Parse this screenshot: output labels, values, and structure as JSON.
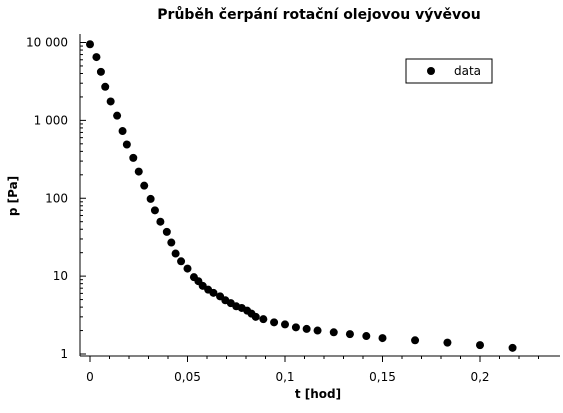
{
  "chart_data": {
    "type": "scatter",
    "title": "Průběh čerpání rotační olejovou vývěvou",
    "xlabel": "t [hod]",
    "ylabel": "p [Pa]",
    "xlim": [
      -0.005,
      0.24
    ],
    "ylim": [
      1,
      15000
    ],
    "y_scale": "log",
    "x_ticks": [
      {
        "value": 0,
        "label": "0"
      },
      {
        "value": 0.05,
        "label": "0,05"
      },
      {
        "value": 0.1,
        "label": "0,1"
      },
      {
        "value": 0.15,
        "label": "0,15"
      },
      {
        "value": 0.2,
        "label": "0,2"
      }
    ],
    "y_ticks": [
      {
        "value": 1,
        "label": "1"
      },
      {
        "value": 10,
        "label": "10"
      },
      {
        "value": 100,
        "label": "100"
      },
      {
        "value": 1000,
        "label": "1 000"
      },
      {
        "value": 10000,
        "label": "10 000"
      }
    ],
    "grid": false,
    "legend": {
      "position": "top-right",
      "entries": [
        "data"
      ]
    },
    "series": [
      {
        "name": "data",
        "color": "#000000",
        "marker": "circle",
        "points": [
          [
            0.0,
            9500
          ],
          [
            0.0033,
            6500
          ],
          [
            0.0056,
            4200
          ],
          [
            0.0078,
            2700
          ],
          [
            0.0106,
            1750
          ],
          [
            0.0139,
            1150
          ],
          [
            0.0167,
            730
          ],
          [
            0.0189,
            490
          ],
          [
            0.0222,
            330
          ],
          [
            0.025,
            220
          ],
          [
            0.0278,
            145
          ],
          [
            0.0311,
            98
          ],
          [
            0.0333,
            70
          ],
          [
            0.0361,
            50
          ],
          [
            0.0394,
            37
          ],
          [
            0.0417,
            27
          ],
          [
            0.0439,
            19.5
          ],
          [
            0.0467,
            15.5
          ],
          [
            0.05,
            12.5
          ],
          [
            0.0533,
            9.7
          ],
          [
            0.0556,
            8.6
          ],
          [
            0.0578,
            7.5
          ],
          [
            0.0606,
            6.7
          ],
          [
            0.0633,
            6.1
          ],
          [
            0.0667,
            5.5
          ],
          [
            0.0694,
            4.9
          ],
          [
            0.0722,
            4.5
          ],
          [
            0.075,
            4.1
          ],
          [
            0.0778,
            3.9
          ],
          [
            0.0806,
            3.6
          ],
          [
            0.0828,
            3.3
          ],
          [
            0.085,
            3.0
          ],
          [
            0.0889,
            2.8
          ],
          [
            0.0944,
            2.55
          ],
          [
            0.1,
            2.4
          ],
          [
            0.1056,
            2.2
          ],
          [
            0.1111,
            2.1
          ],
          [
            0.1167,
            2.0
          ],
          [
            0.125,
            1.9
          ],
          [
            0.1333,
            1.8
          ],
          [
            0.1417,
            1.7
          ],
          [
            0.15,
            1.6
          ],
          [
            0.1667,
            1.5
          ],
          [
            0.1833,
            1.4
          ],
          [
            0.2,
            1.3
          ],
          [
            0.2167,
            1.2
          ]
        ]
      }
    ]
  }
}
